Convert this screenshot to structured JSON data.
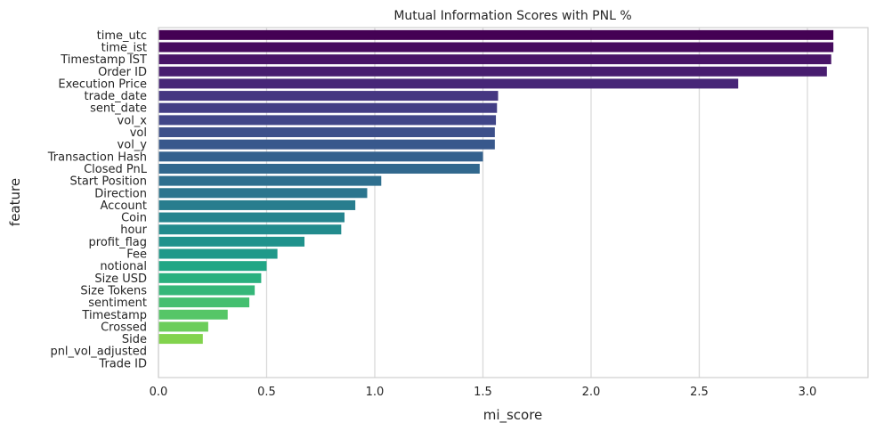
{
  "chart_data": {
    "type": "bar",
    "orientation": "horizontal",
    "title": "Mutual Information Scores with PNL %",
    "xlabel": "mi_score",
    "ylabel": "feature",
    "xlim": [
      0,
      3.28
    ],
    "xticks": [
      "0.0",
      "0.5",
      "1.0",
      "1.5",
      "2.0",
      "2.5",
      "3.0"
    ],
    "grid": true,
    "palette": "viridis",
    "categories": [
      "time_utc",
      "time_ist",
      "Timestamp IST",
      "Order ID",
      "Execution Price",
      "trade_date",
      "sent_date",
      "vol_x",
      "vol",
      "vol_y",
      "Transaction Hash",
      "Closed PnL",
      "Start Position",
      "Direction",
      "Account",
      "Coin",
      "hour",
      "profit_flag",
      "Fee",
      "notional",
      "Size USD",
      "Size Tokens",
      "sentiment",
      "Timestamp",
      "Crossed",
      "Side",
      "pnl_vol_adjusted",
      "Trade ID"
    ],
    "values": [
      3.12,
      3.12,
      3.11,
      3.09,
      2.68,
      1.57,
      1.565,
      1.56,
      1.555,
      1.555,
      1.5,
      1.485,
      1.03,
      0.965,
      0.91,
      0.86,
      0.845,
      0.675,
      0.55,
      0.5,
      0.475,
      0.445,
      0.42,
      0.32,
      0.23,
      0.205,
      0.0,
      0.0
    ],
    "colors": [
      "#440154",
      "#460b5e",
      "#481467",
      "#481d6f",
      "#472677",
      "#453781",
      "#433e85",
      "#404688",
      "#3c4f8a",
      "#38588c",
      "#34618d",
      "#31688e",
      "#2e6f8e",
      "#2b758e",
      "#287d8e",
      "#25848e",
      "#228b8d",
      "#20928c",
      "#1f998a",
      "#21a685",
      "#2ab07f",
      "#35b779",
      "#44bf70",
      "#56c667",
      "#6ccd5a",
      "#82d34d",
      "#9bd93c",
      "#b4de2c"
    ]
  }
}
